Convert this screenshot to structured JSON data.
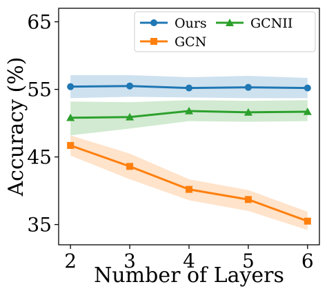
{
  "chart_data": {
    "type": "line",
    "xlabel": "Number of Layers",
    "ylabel": "Accuracy (%)",
    "x": [
      2,
      3,
      4,
      5,
      6
    ],
    "xlim": [
      1.8,
      6.2
    ],
    "ylim": [
      32,
      67
    ],
    "xticks": [
      "2",
      "3",
      "4",
      "5",
      "6"
    ],
    "yticks": [
      35,
      45,
      55,
      65
    ],
    "ytick_labels": [
      "35",
      "45",
      "55",
      "65"
    ],
    "grid": false,
    "legend_position": "top-right",
    "series": [
      {
        "name": "Ours",
        "color": "#1f77b4",
        "marker": "circle",
        "values": [
          55.4,
          55.5,
          55.2,
          55.3,
          55.2
        ],
        "lower": [
          53.7,
          53.9,
          53.8,
          53.7,
          53.7
        ],
        "upper": [
          57.1,
          57.1,
          56.8,
          57.0,
          56.7
        ]
      },
      {
        "name": "GCN",
        "color": "#ff7f0e",
        "marker": "square",
        "values": [
          46.7,
          43.6,
          40.2,
          38.7,
          35.5
        ],
        "lower": [
          45.2,
          41.7,
          38.6,
          37.0,
          34.2
        ],
        "upper": [
          48.2,
          45.5,
          41.7,
          40.1,
          36.9
        ]
      },
      {
        "name": "GCNII",
        "color": "#2ca02c",
        "marker": "triangle",
        "values": [
          50.8,
          50.9,
          51.8,
          51.6,
          51.7
        ],
        "lower": [
          48.2,
          49.2,
          50.3,
          50.2,
          50.3
        ],
        "upper": [
          53.2,
          53.1,
          53.4,
          53.3,
          53.4
        ]
      }
    ]
  }
}
